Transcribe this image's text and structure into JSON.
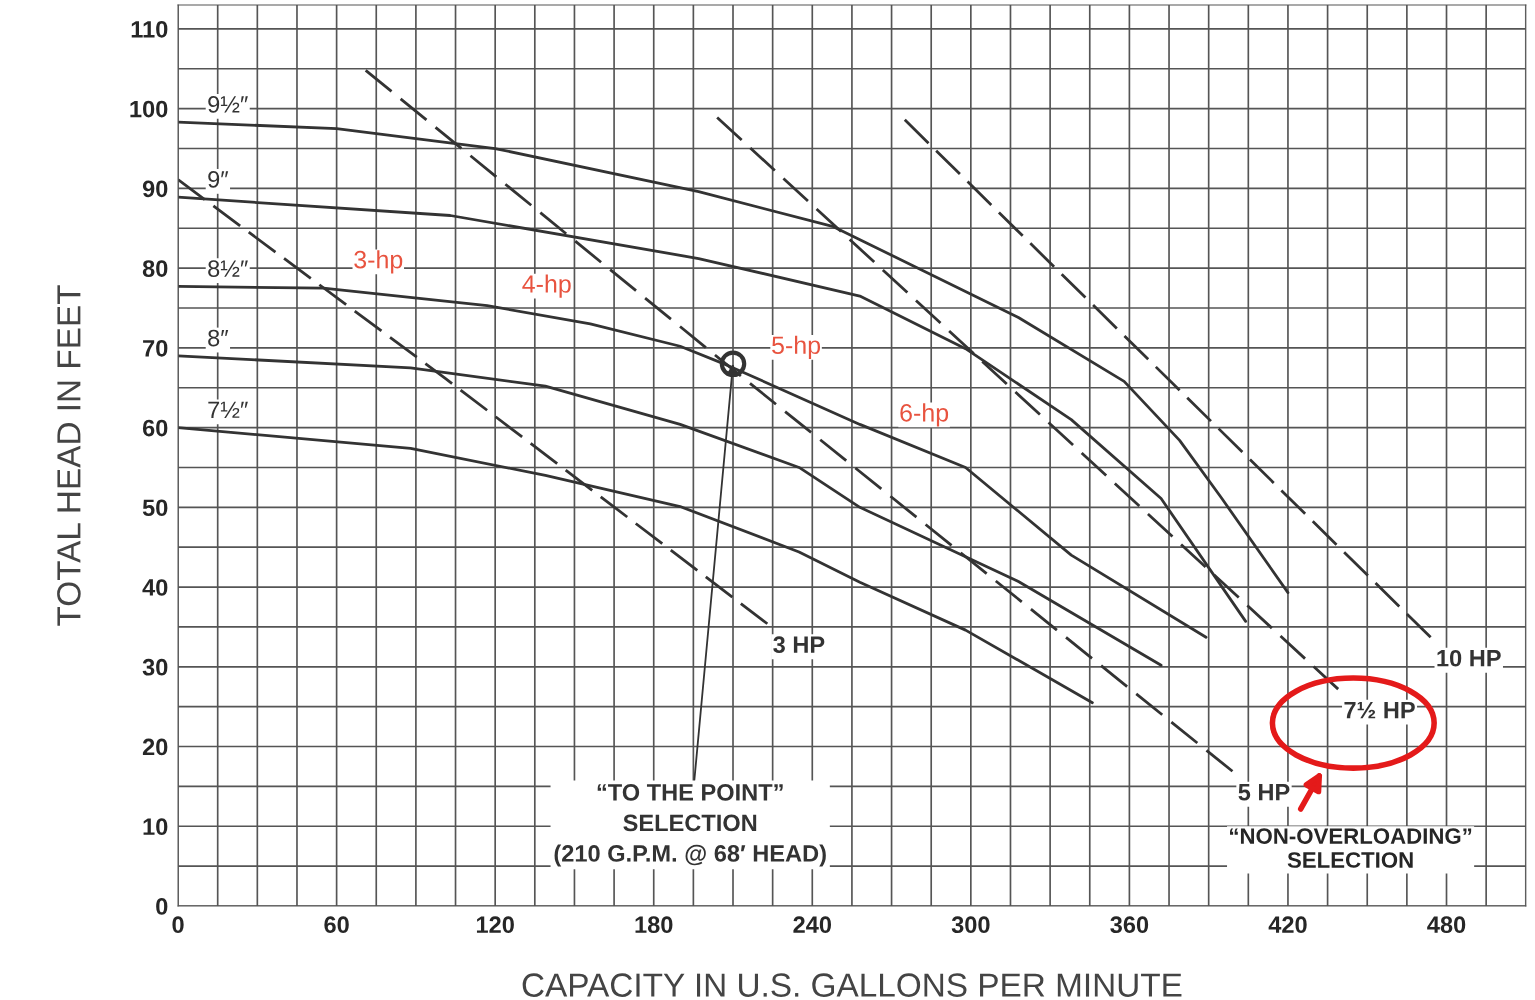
{
  "chart_data": {
    "type": "line",
    "xlabel": "CAPACITY IN U.S. GALLONS PER MINUTE",
    "ylabel": "TOTAL HEAD IN FEET",
    "xlim": [
      0,
      510
    ],
    "ylim": [
      0,
      113
    ],
    "xticks": [
      0,
      60,
      120,
      180,
      240,
      300,
      360,
      420,
      480
    ],
    "yticks": [
      0,
      10,
      20,
      30,
      40,
      50,
      60,
      70,
      80,
      90,
      100,
      110
    ],
    "grid": true,
    "legend": false,
    "series": [
      {
        "name": "9½″",
        "color": "#333333",
        "line_style": "solid",
        "x": [
          0,
          60,
          120,
          197,
          248,
          318,
          358,
          379,
          395,
          420
        ],
        "values": [
          98.3,
          97.5,
          95,
          89.6,
          85.2,
          73.8,
          65.8,
          58.4,
          51.1,
          39.3
        ]
      },
      {
        "name": "9″",
        "color": "#333333",
        "line_style": "solid",
        "x": [
          0,
          103,
          197,
          258,
          298,
          338,
          372,
          404
        ],
        "values": [
          88.9,
          86.6,
          81.2,
          76.5,
          69.9,
          61,
          51.1,
          35.7
        ]
      },
      {
        "name": "8½″",
        "color": "#333333",
        "line_style": "solid",
        "x": [
          0,
          55,
          117,
          156,
          190,
          208,
          258,
          298,
          338,
          389
        ],
        "values": [
          77.7,
          77.5,
          75.3,
          73,
          70.2,
          67.8,
          60.4,
          55,
          44,
          33.7
        ]
      },
      {
        "name": "8″",
        "color": "#333333",
        "line_style": "solid",
        "x": [
          0,
          88,
          139,
          190,
          235,
          258,
          318,
          372
        ],
        "values": [
          69,
          67.5,
          65.2,
          60.4,
          55,
          50,
          40.7,
          30.2
        ]
      },
      {
        "name": "7½″",
        "color": "#333333",
        "line_style": "solid",
        "x": [
          0,
          88,
          139,
          190,
          235,
          258,
          298,
          346
        ],
        "values": [
          60,
          57.4,
          54,
          50.1,
          44.4,
          40.6,
          34.6,
          25.5
        ]
      },
      {
        "name": "3 HP",
        "color": "#333333",
        "line_style": "dashed",
        "x": [
          0,
          101,
          223
        ],
        "values": [
          91.1,
          66.2,
          35.4
        ]
      },
      {
        "name": "5 HP",
        "color": "#333333",
        "line_style": "dashed",
        "x": [
          71,
          208,
          399
        ],
        "values": [
          104.8,
          67.8,
          16.9
        ]
      },
      {
        "name": "7½ HP",
        "color": "#333333",
        "line_style": "dashed",
        "x": [
          204,
          439
        ],
        "values": [
          98.9,
          27.2
        ]
      },
      {
        "name": "10 HP",
        "color": "#333333",
        "line_style": "dashed",
        "x": [
          275,
          474
        ],
        "values": [
          98.6,
          33.7
        ]
      },
      {
        "type": "scatter",
        "marker": "circle",
        "color": "#333333",
        "x": [
          210
        ],
        "values": [
          68
        ]
      }
    ],
    "annotations": [
      "3-hp",
      "4-hp",
      "5-hp",
      "6-hp",
      {
        "text": "“TO THE POINT”\nSELECTION\n(210 G.P.M. @ 68′ HEAD)",
        "x": 210,
        "y": 68
      },
      "“NON-OVERLOADING”\nSELECTION"
    ]
  }
}
